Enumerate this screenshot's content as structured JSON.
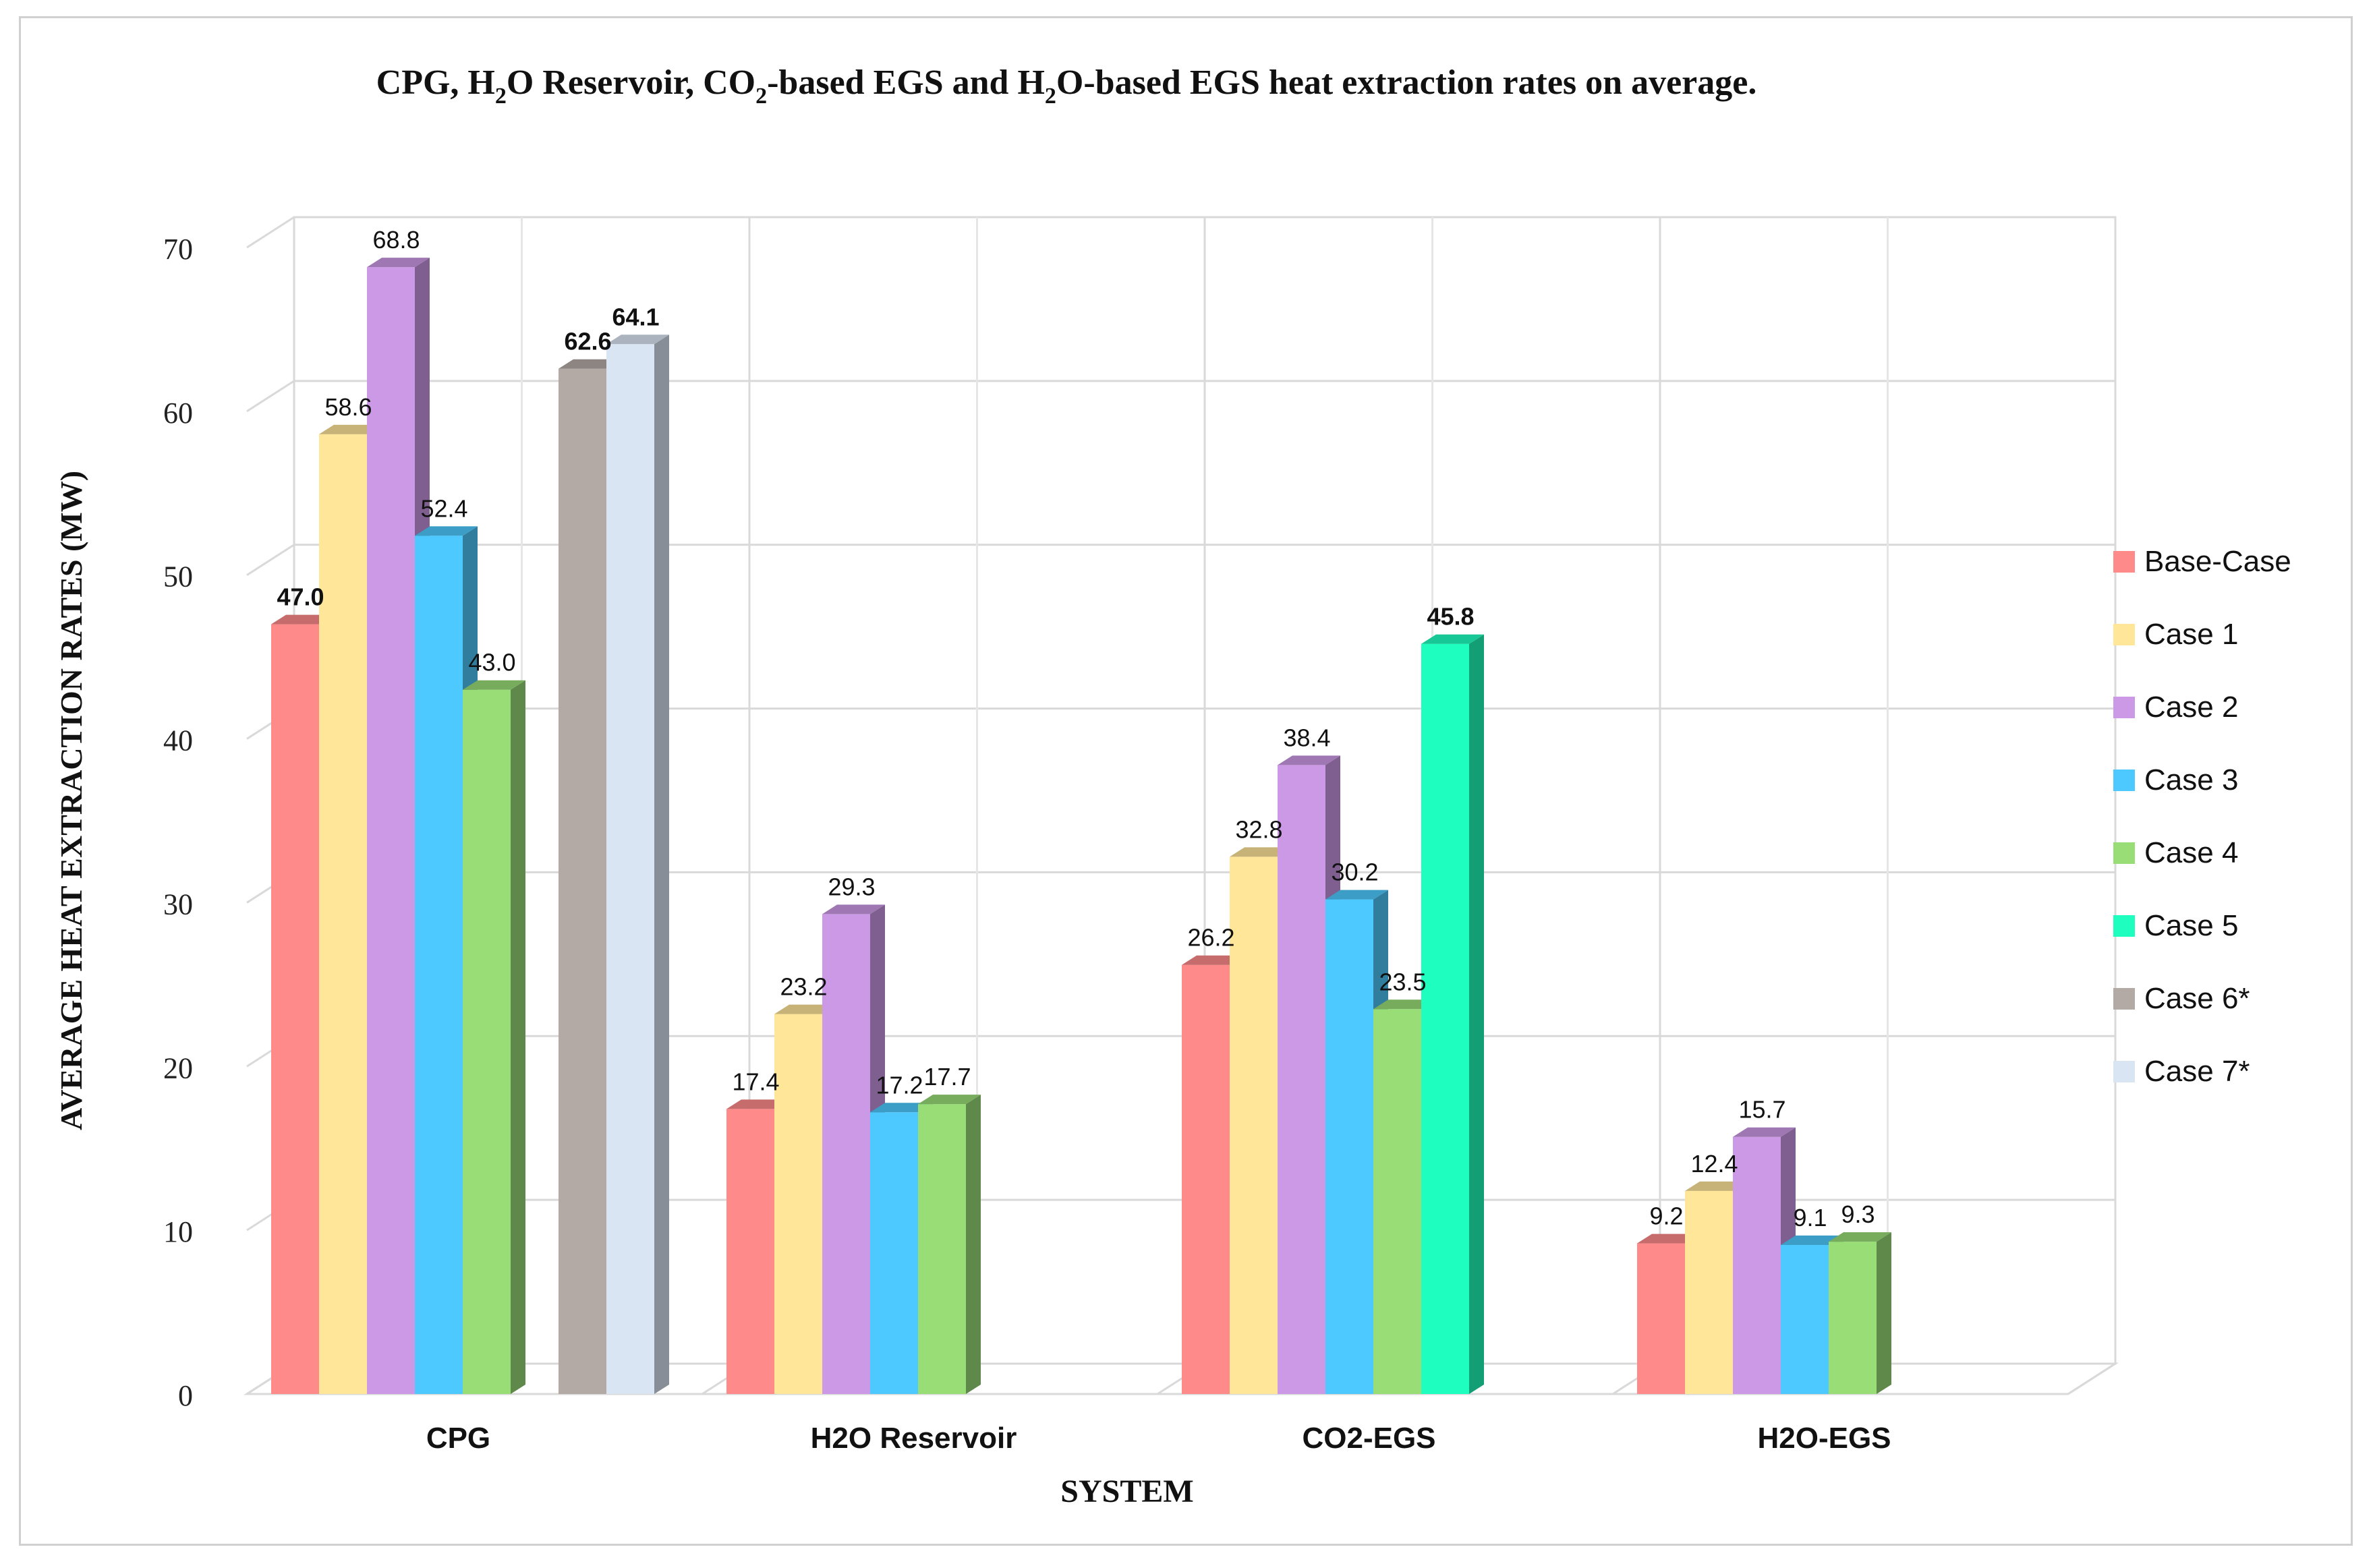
{
  "chart_data": {
    "type": "bar",
    "title": {
      "p1": "CPG, H",
      "s1": "2",
      "p2": "O Reservoir, CO",
      "s2": "2",
      "p3": "-based EGS and H",
      "s3": "2",
      "p4": "O-based EGS heat extraction rates on average."
    },
    "xlabel": "SYSTEM",
    "ylabel": "AVERAGE HEAT EXTRACTION RATES (MW)",
    "ylim": [
      0,
      70
    ],
    "yticks": [
      "0",
      "10",
      "20",
      "30",
      "40",
      "50",
      "60",
      "70"
    ],
    "grid": true,
    "legend_position": "right",
    "categories": [
      "CPG",
      "H2O Reservoir",
      "CO2-EGS",
      "H2O-EGS"
    ],
    "series": [
      {
        "name": "Base-Case",
        "color": "#ff8a8a",
        "values": [
          47.0,
          17.4,
          26.2,
          9.2
        ],
        "labels": [
          "47.0",
          "17.4",
          "26.2",
          "9.2"
        ],
        "bold": [
          true,
          false,
          false,
          false
        ]
      },
      {
        "name": "Case 1",
        "color": "#ffe699",
        "values": [
          58.6,
          23.2,
          32.8,
          12.4
        ],
        "labels": [
          "58.6",
          "23.2",
          "32.8",
          "12.4"
        ],
        "bold": [
          false,
          false,
          false,
          false
        ]
      },
      {
        "name": "Case 2",
        "color": "#cc99e6",
        "values": [
          68.8,
          29.3,
          38.4,
          15.7
        ],
        "labels": [
          "68.8",
          "29.3",
          "38.4",
          "15.7"
        ],
        "bold": [
          false,
          false,
          false,
          false
        ]
      },
      {
        "name": "Case 3",
        "color": "#4dc9ff",
        "values": [
          52.4,
          17.2,
          30.2,
          9.1
        ],
        "labels": [
          "52.4",
          "17.2",
          "30.2",
          "9.1"
        ],
        "bold": [
          false,
          false,
          false,
          false
        ]
      },
      {
        "name": "Case 4",
        "color": "#99dd77",
        "values": [
          43.0,
          17.7,
          23.5,
          9.3
        ],
        "labels": [
          "43.0",
          "17.7",
          "23.5",
          "9.3"
        ],
        "bold": [
          false,
          false,
          false,
          false
        ]
      },
      {
        "name": "Case 5",
        "color": "#1effbf",
        "values": [
          null,
          null,
          45.8,
          null
        ],
        "labels": [
          "",
          "",
          "45.8",
          ""
        ],
        "bold": [
          false,
          false,
          true,
          false
        ]
      },
      {
        "name": "Case 6*",
        "color": "#b3aaa6",
        "values": [
          62.6,
          null,
          null,
          null
        ],
        "labels": [
          "62.6",
          "",
          "",
          ""
        ],
        "bold": [
          true,
          false,
          false,
          false
        ]
      },
      {
        "name": "Case 7*",
        "color": "#dae5f3",
        "values": [
          64.1,
          null,
          null,
          null
        ],
        "labels": [
          "64.1",
          "",
          "",
          ""
        ],
        "bold": [
          true,
          false,
          false,
          false
        ]
      }
    ]
  }
}
